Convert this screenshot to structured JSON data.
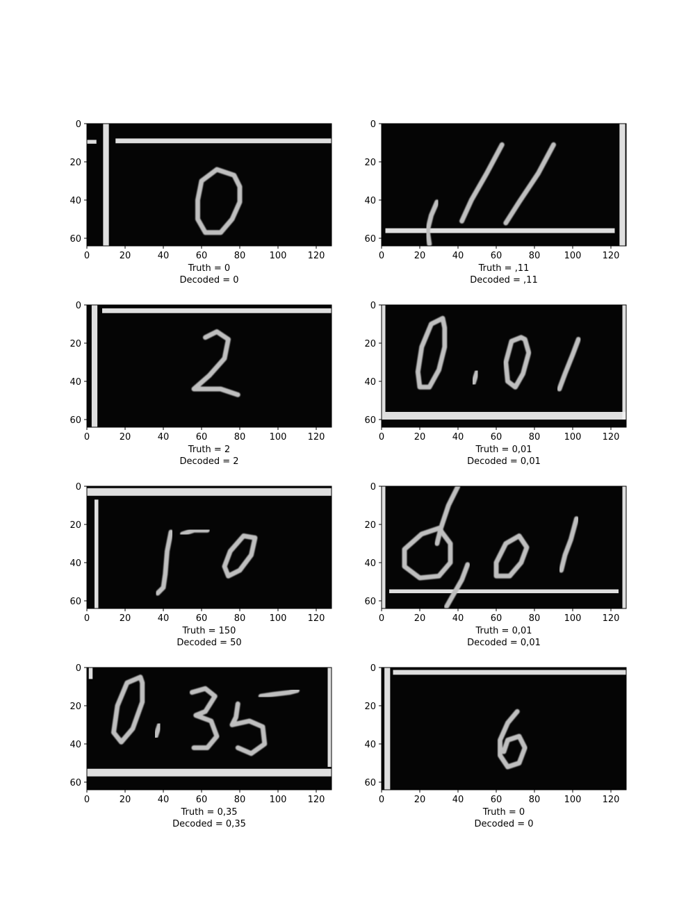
{
  "figure": {
    "background": "#ffffff",
    "image_background": "#050505",
    "ink_color": "#bfbfbf",
    "line_color": "#f2f2f2"
  },
  "chart_data": [
    {
      "type": "image",
      "xticks": [
        0,
        20,
        40,
        60,
        80,
        100,
        120
      ],
      "yticks": [
        0,
        20,
        40,
        60
      ],
      "xlim": [
        0,
        128
      ],
      "ylim": [
        64,
        0
      ],
      "truth_label": "Truth = 0",
      "decoded_label": "Decoded = 0",
      "rules": [
        {
          "orient": "v",
          "pos": 10,
          "from": 0,
          "to": 64,
          "width": 3
        },
        {
          "orient": "h",
          "pos": 9,
          "from": 15,
          "to": 128,
          "width": 2.5
        },
        {
          "orient": "h",
          "pos": 9.5,
          "from": 0,
          "to": 5,
          "width": 2
        }
      ],
      "strokes": [
        [
          [
            77,
            27
          ],
          [
            68,
            24
          ],
          [
            60,
            30
          ],
          [
            58,
            40
          ],
          [
            58,
            50
          ],
          [
            62,
            57
          ],
          [
            70,
            57
          ],
          [
            76,
            50
          ],
          [
            80,
            41
          ],
          [
            80,
            33
          ],
          [
            77,
            27
          ]
        ]
      ]
    },
    {
      "type": "image",
      "xticks": [
        0,
        20,
        40,
        60,
        80,
        100,
        120
      ],
      "yticks": [
        0,
        20,
        40,
        60
      ],
      "xlim": [
        0,
        128
      ],
      "ylim": [
        64,
        0
      ],
      "truth_label": "Truth = ,11",
      "decoded_label": "Decoded = ,11",
      "rules": [
        {
          "orient": "h",
          "pos": 56,
          "from": 2,
          "to": 122,
          "width": 2.5
        },
        {
          "orient": "v",
          "pos": 126,
          "from": 0,
          "to": 64,
          "width": 3
        }
      ],
      "strokes": [
        [
          [
            29,
            41
          ],
          [
            26,
            48
          ],
          [
            24,
            56
          ],
          [
            25,
            63
          ]
        ],
        [
          [
            63,
            11
          ],
          [
            55,
            26
          ],
          [
            47,
            40
          ],
          [
            42,
            51
          ]
        ],
        [
          [
            90,
            11
          ],
          [
            82,
            26
          ],
          [
            72,
            41
          ],
          [
            65,
            52
          ]
        ]
      ]
    },
    {
      "type": "image",
      "xticks": [
        0,
        20,
        40,
        60,
        80,
        100,
        120
      ],
      "yticks": [
        0,
        20,
        40,
        60
      ],
      "xlim": [
        0,
        128
      ],
      "ylim": [
        64,
        0
      ],
      "truth_label": "Truth = 2",
      "decoded_label": "Decoded = 2",
      "rules": [
        {
          "orient": "v",
          "pos": 4,
          "from": 0,
          "to": 64,
          "width": 3
        },
        {
          "orient": "h",
          "pos": 3,
          "from": 8,
          "to": 128,
          "width": 2.5
        }
      ],
      "strokes": [
        [
          [
            62,
            17
          ],
          [
            68,
            14
          ],
          [
            74,
            18
          ],
          [
            72,
            28
          ],
          [
            64,
            37
          ],
          [
            56,
            44
          ],
          [
            62,
            44
          ],
          [
            70,
            44
          ],
          [
            79,
            47
          ]
        ]
      ]
    },
    {
      "type": "image",
      "xticks": [
        0,
        20,
        40,
        60,
        80,
        100,
        120
      ],
      "yticks": [
        0,
        20,
        40,
        60
      ],
      "xlim": [
        0,
        128
      ],
      "ylim": [
        64,
        0
      ],
      "truth_label": "Truth = 0,01",
      "decoded_label": "Decoded = 0,01",
      "rules": [
        {
          "orient": "h",
          "pos": 58,
          "from": 0,
          "to": 128,
          "width": 4
        },
        {
          "orient": "v",
          "pos": 1,
          "from": 0,
          "to": 56,
          "width": 2
        },
        {
          "orient": "v",
          "pos": 127,
          "from": 0,
          "to": 60,
          "width": 2
        }
      ],
      "strokes": [
        [
          [
            32,
            7
          ],
          [
            26,
            10
          ],
          [
            21,
            22
          ],
          [
            19,
            35
          ],
          [
            20,
            43
          ],
          [
            25,
            43
          ],
          [
            30,
            34
          ],
          [
            33,
            22
          ],
          [
            33,
            12
          ],
          [
            32,
            7
          ]
        ],
        [
          [
            50,
            35
          ],
          [
            48,
            41
          ]
        ],
        [
          [
            73,
            17
          ],
          [
            68,
            19
          ],
          [
            65,
            30
          ],
          [
            66,
            40
          ],
          [
            70,
            43
          ],
          [
            74,
            36
          ],
          [
            77,
            25
          ],
          [
            75,
            18
          ],
          [
            73,
            17
          ]
        ],
        [
          [
            103,
            18
          ],
          [
            100,
            26
          ],
          [
            96,
            36
          ],
          [
            93,
            44
          ]
        ]
      ]
    },
    {
      "type": "image",
      "xticks": [
        0,
        20,
        40,
        60,
        80,
        100,
        120
      ],
      "yticks": [
        0,
        20,
        40,
        60
      ],
      "xlim": [
        0,
        128
      ],
      "ylim": [
        64,
        0
      ],
      "truth_label": "Truth = 150",
      "decoded_label": "Decoded = 50",
      "rules": [
        {
          "orient": "h",
          "pos": 3,
          "from": 0,
          "to": 128,
          "width": 4
        },
        {
          "orient": "v",
          "pos": 5,
          "from": 7,
          "to": 64,
          "width": 2
        }
      ],
      "strokes": [
        [
          [
            44,
            24
          ],
          [
            42,
            34
          ],
          [
            41,
            46
          ],
          [
            40,
            53
          ],
          [
            37,
            56
          ]
        ],
        [
          [
            50,
            25
          ],
          [
            56,
            23
          ],
          [
            63,
            23
          ]
        ],
        [
          [
            88,
            27
          ],
          [
            82,
            26
          ],
          [
            75,
            34
          ],
          [
            72,
            42
          ],
          [
            74,
            47
          ],
          [
            80,
            44
          ],
          [
            86,
            36
          ],
          [
            88,
            27
          ]
        ]
      ]
    },
    {
      "type": "image",
      "xticks": [
        0,
        20,
        40,
        60,
        80,
        100,
        120
      ],
      "yticks": [
        0,
        20,
        40,
        60
      ],
      "xlim": [
        0,
        128
      ],
      "ylim": [
        64,
        0
      ],
      "truth_label": "Truth = 0,01",
      "decoded_label": "Decoded = 0,01",
      "rules": [
        {
          "orient": "h",
          "pos": 55,
          "from": 4,
          "to": 124,
          "width": 2
        },
        {
          "orient": "v",
          "pos": 1,
          "from": 0,
          "to": 64,
          "width": 2
        },
        {
          "orient": "v",
          "pos": 127,
          "from": 0,
          "to": 64,
          "width": 2
        }
      ],
      "strokes": [
        [
          [
            40,
            0
          ],
          [
            35,
            10
          ],
          [
            31,
            22
          ],
          [
            29,
            30
          ]
        ],
        [
          [
            30,
            22
          ],
          [
            21,
            25
          ],
          [
            12,
            33
          ],
          [
            12,
            42
          ],
          [
            20,
            48
          ],
          [
            30,
            47
          ],
          [
            36,
            40
          ],
          [
            36,
            30
          ],
          [
            30,
            22
          ]
        ],
        [
          [
            45,
            41
          ],
          [
            42,
            49
          ],
          [
            38,
            56
          ],
          [
            34,
            63
          ]
        ],
        [
          [
            72,
            26
          ],
          [
            65,
            30
          ],
          [
            60,
            40
          ],
          [
            60,
            47
          ],
          [
            67,
            47
          ],
          [
            73,
            40
          ],
          [
            76,
            32
          ],
          [
            72,
            26
          ]
        ],
        [
          [
            102,
            17
          ],
          [
            99,
            28
          ],
          [
            96,
            36
          ],
          [
            94,
            44
          ]
        ]
      ]
    },
    {
      "type": "image",
      "xticks": [
        0,
        20,
        40,
        60,
        80,
        100,
        120
      ],
      "yticks": [
        0,
        20,
        40,
        60
      ],
      "xlim": [
        0,
        128
      ],
      "ylim": [
        64,
        0
      ],
      "truth_label": "Truth = 0,35",
      "decoded_label": "Decoded = 0,35",
      "rules": [
        {
          "orient": "h",
          "pos": 55,
          "from": 0,
          "to": 128,
          "width": 4
        },
        {
          "orient": "v",
          "pos": 127,
          "from": 0,
          "to": 52,
          "width": 2
        },
        {
          "orient": "v",
          "pos": 2,
          "from": 0,
          "to": 6,
          "width": 2
        }
      ],
      "strokes": [
        [
          [
            28,
            5
          ],
          [
            21,
            8
          ],
          [
            16,
            20
          ],
          [
            14,
            34
          ],
          [
            18,
            39
          ],
          [
            24,
            32
          ],
          [
            29,
            18
          ],
          [
            29,
            8
          ],
          [
            28,
            5
          ]
        ],
        [
          [
            38,
            30
          ],
          [
            36,
            36
          ]
        ],
        [
          [
            55,
            13
          ],
          [
            62,
            11
          ],
          [
            67,
            15
          ],
          [
            62,
            23
          ],
          [
            57,
            25
          ],
          [
            65,
            28
          ],
          [
            68,
            36
          ],
          [
            63,
            42
          ],
          [
            56,
            42
          ]
        ],
        [
          [
            79,
            19
          ],
          [
            78,
            26
          ],
          [
            76,
            30
          ],
          [
            85,
            28
          ],
          [
            92,
            31
          ],
          [
            93,
            40
          ],
          [
            86,
            45
          ],
          [
            79,
            42
          ]
        ],
        [
          [
            91,
            15
          ],
          [
            98,
            14
          ],
          [
            106,
            13
          ],
          [
            110,
            12
          ]
        ]
      ]
    },
    {
      "type": "image",
      "xticks": [
        0,
        20,
        40,
        60,
        80,
        100,
        120
      ],
      "yticks": [
        0,
        20,
        40,
        60
      ],
      "xlim": [
        0,
        128
      ],
      "ylim": [
        64,
        0
      ],
      "truth_label": "Truth = 0",
      "decoded_label": "Decoded = 0",
      "rules": [
        {
          "orient": "v",
          "pos": 3,
          "from": 0,
          "to": 64,
          "width": 3
        },
        {
          "orient": "h",
          "pos": 2.5,
          "from": 6,
          "to": 128,
          "width": 2.5
        }
      ],
      "strokes": [
        [
          [
            71,
            23
          ],
          [
            66,
            29
          ],
          [
            62,
            38
          ],
          [
            62,
            46
          ],
          [
            66,
            52
          ],
          [
            72,
            50
          ],
          [
            75,
            42
          ],
          [
            72,
            36
          ],
          [
            66,
            38
          ],
          [
            64,
            44
          ]
        ]
      ]
    }
  ]
}
